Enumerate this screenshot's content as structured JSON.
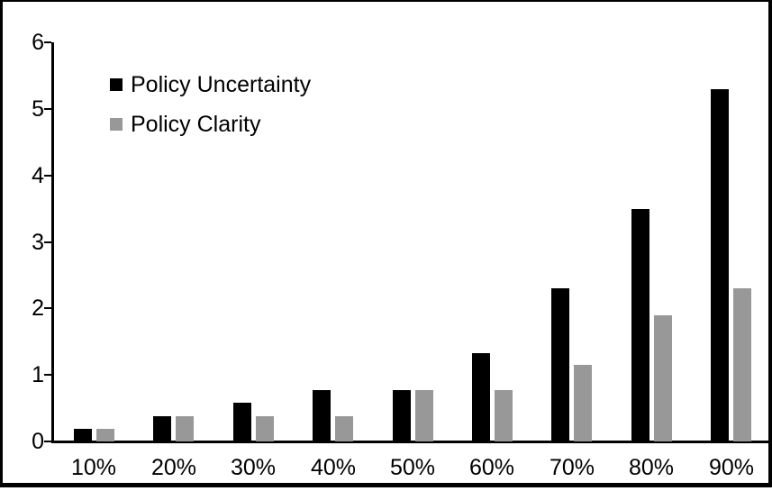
{
  "chart_data": {
    "type": "bar",
    "title": "",
    "xlabel": "",
    "ylabel": "",
    "categories": [
      "10%",
      "20%",
      "30%",
      "40%",
      "50%",
      "60%",
      "70%",
      "80%",
      "90%"
    ],
    "series": [
      {
        "name": "Policy Uncertainty",
        "color": "#000000",
        "values": [
          0.19,
          0.38,
          0.58,
          0.77,
          0.77,
          1.33,
          2.3,
          3.5,
          5.3
        ]
      },
      {
        "name": "Policy Clarity",
        "color": "#989898",
        "values": [
          0.19,
          0.38,
          0.38,
          0.38,
          0.77,
          0.77,
          1.15,
          1.9,
          2.3
        ]
      }
    ],
    "ylim": [
      0,
      6
    ],
    "yticks": [
      "0",
      "1",
      "2",
      "3",
      "4",
      "5",
      "6"
    ],
    "grid": false,
    "legend_position": "top-left",
    "axis_color": "#000000",
    "frame_color": "#000000"
  }
}
